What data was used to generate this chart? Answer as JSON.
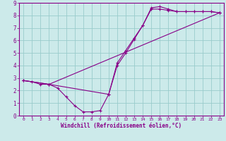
{
  "bg_color": "#cceaea",
  "line_color": "#880088",
  "grid_color": "#99cccc",
  "xlabel": "Windchill (Refroidissement éolien,°C)",
  "xlim": [
    -0.5,
    23.5
  ],
  "ylim": [
    0,
    9
  ],
  "xticks": [
    0,
    1,
    2,
    3,
    4,
    5,
    6,
    7,
    8,
    9,
    10,
    11,
    12,
    13,
    14,
    15,
    16,
    17,
    18,
    19,
    20,
    21,
    22,
    23
  ],
  "yticks": [
    0,
    1,
    2,
    3,
    4,
    5,
    6,
    7,
    8,
    9
  ],
  "series": [
    {
      "x": [
        0,
        1,
        2,
        3,
        4,
        5,
        6,
        7,
        8,
        9,
        10,
        11,
        12,
        13,
        14,
        15,
        16,
        17,
        18,
        19,
        20,
        21,
        22,
        23
      ],
      "y": [
        2.8,
        2.7,
        2.5,
        2.5,
        2.2,
        1.5,
        0.8,
        0.3,
        0.3,
        0.4,
        1.7,
        4.0,
        5.0,
        6.1,
        7.2,
        8.6,
        8.7,
        8.5,
        8.3,
        8.3,
        8.3,
        8.3,
        8.3,
        8.2
      ]
    },
    {
      "x": [
        0,
        3,
        10,
        11,
        12,
        13,
        14,
        15,
        16,
        17,
        18,
        19,
        20,
        21,
        22,
        23
      ],
      "y": [
        2.8,
        2.5,
        1.7,
        4.2,
        5.2,
        6.2,
        7.2,
        8.5,
        8.5,
        8.4,
        8.3,
        8.3,
        8.3,
        8.3,
        8.3,
        8.2
      ]
    },
    {
      "x": [
        0,
        3,
        23
      ],
      "y": [
        2.8,
        2.5,
        8.2
      ]
    }
  ]
}
